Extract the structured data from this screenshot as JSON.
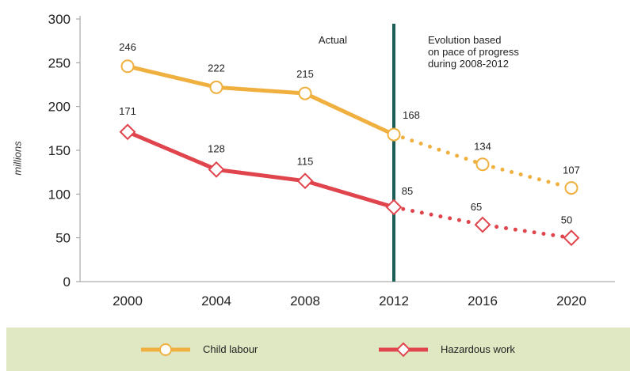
{
  "chart_data": {
    "type": "line",
    "title": "",
    "xlabel": "",
    "ylabel": "millions",
    "categories": [
      "2000",
      "2004",
      "2008",
      "2012",
      "2016",
      "2020"
    ],
    "ylim": [
      0,
      300
    ],
    "yticks": [
      "0",
      "50",
      "100",
      "150",
      "200",
      "250",
      "300"
    ],
    "series": [
      {
        "name": "Child labour",
        "values": [
          246,
          222,
          215,
          168,
          134,
          107
        ],
        "labels": [
          "246",
          "222",
          "215",
          "168",
          "134",
          "107"
        ],
        "color": "#f0b040",
        "marker": "circle"
      },
      {
        "name": "Hazardous work",
        "values": [
          171,
          128,
          115,
          85,
          65,
          50
        ],
        "labels": [
          "171",
          "128",
          "115",
          "85",
          "65",
          "50"
        ],
        "color": "#e0444c",
        "marker": "diamond"
      }
    ],
    "divider_at": "2012",
    "divider_color": "#1b5e55",
    "actual_until": "2012",
    "annotations": {
      "actual": "Actual",
      "projection_lines": [
        "Evolution based",
        "on pace of progress",
        "during 2008-2012"
      ]
    },
    "legend_position": "bottom",
    "legend_background": "#dfe8c3",
    "grid": false
  }
}
